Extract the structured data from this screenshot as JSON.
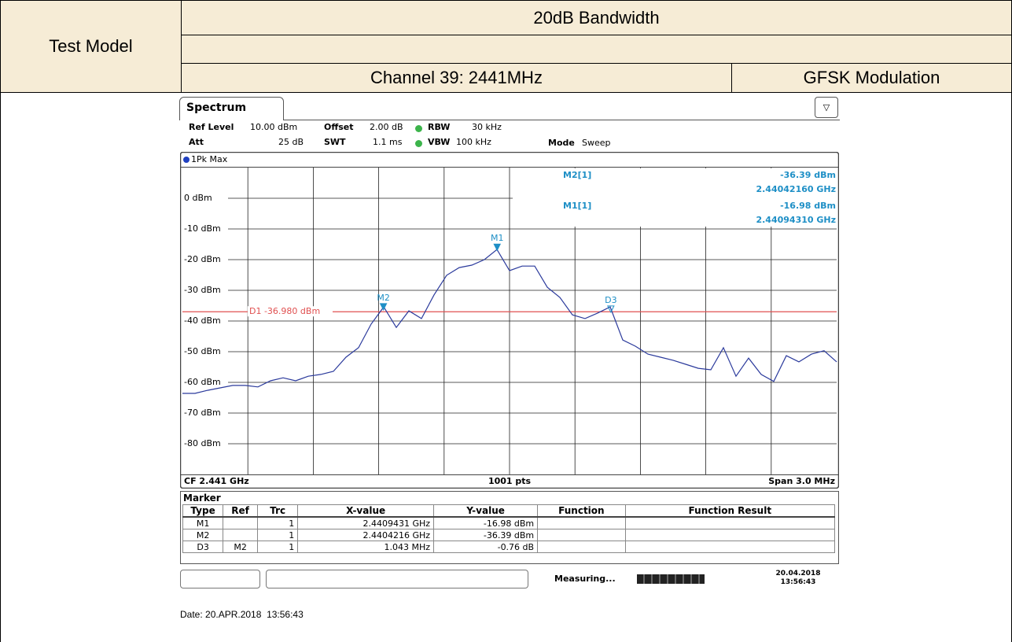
{
  "header": {
    "test_model_label": "Test Model",
    "title": "20dB Bandwidth",
    "channel": "Channel 39: 2441MHz",
    "modulation": "GFSK Modulation"
  },
  "instrument": {
    "tab": "Spectrum",
    "settings": [
      [
        {
          "label": "Ref Level",
          "value": "10.00 dBm"
        },
        {
          "label": "Offset",
          "value": "2.00 dB"
        },
        {
          "label": "RBW",
          "value": "30 kHz"
        }
      ],
      [
        {
          "label": "Att",
          "value": "25 dB"
        },
        {
          "label": "SWT",
          "value": "1.1 ms"
        },
        {
          "label": "VBW",
          "value": "100 kHz"
        },
        {
          "label": "Mode",
          "value": "Sweep"
        }
      ]
    ],
    "trace_label": "1Pk Max",
    "marker_info": [
      {
        "name": "M2[1]",
        "level": "-36.39 dBm",
        "freq": "2.44042160 GHz"
      },
      {
        "name": "M1[1]",
        "level": "-16.98 dBm",
        "freq": "2.44094310 GHz"
      }
    ],
    "footer": {
      "cf": "CF 2.441 GHz",
      "points": "1001 pts",
      "span": "Span 3.0 MHz"
    },
    "marker_table": {
      "title": "Marker",
      "columns": [
        "Type",
        "Ref",
        "Trc",
        "X-value",
        "Y-value",
        "Function",
        "Function Result"
      ],
      "rows": [
        [
          "M1",
          "",
          "1",
          "2.4409431 GHz",
          "-16.98 dBm",
          "",
          ""
        ],
        [
          "M2",
          "",
          "1",
          "2.4404216 GHz",
          "-36.39 dBm",
          "",
          ""
        ],
        [
          "D3",
          "M2",
          "1",
          "1.043 MHz",
          "-0.76 dB",
          "",
          ""
        ]
      ]
    },
    "status": {
      "text": "Measuring...",
      "date": "20.04.2018",
      "time": "13:56:43"
    }
  },
  "chart_data": {
    "type": "line",
    "xlim": [
      2.4395,
      2.4425
    ],
    "ylim": [
      -90,
      10
    ],
    "yticks": [
      {
        "value": 0,
        "label": "0 dBm"
      },
      {
        "value": -10,
        "label": "-10 dBm"
      },
      {
        "value": -20,
        "label": "-20 dBm"
      },
      {
        "value": -30,
        "label": "-30 dBm"
      },
      {
        "value": -40,
        "label": "-40 dBm"
      },
      {
        "value": -50,
        "label": "-50 dBm"
      },
      {
        "value": -60,
        "label": "-60 dBm"
      },
      {
        "value": -70,
        "label": "-70 dBm"
      },
      {
        "value": -80,
        "label": "-80 dBm"
      }
    ],
    "grid": true,
    "series": [
      {
        "color": "#2b3a9c",
        "values": [
          -63.6,
          -63.6,
          -62.6,
          -61.8,
          -61.0,
          -61.0,
          -61.5,
          -59.5,
          -58.5,
          -59.5,
          -58.0,
          -57.4,
          -56.4,
          -51.8,
          -48.7,
          -41.0,
          -35.4,
          -42.1,
          -36.7,
          -39.2,
          -31.5,
          -25.1,
          -22.6,
          -21.8,
          -20.0,
          -16.7,
          -23.6,
          -22.1,
          -22.1,
          -29.0,
          -32.3,
          -38.0,
          -39.2,
          -37.4,
          -35.4,
          -46.2,
          -48.2,
          -50.8,
          -51.8,
          -52.8,
          -54.1,
          -55.4,
          -55.9,
          -48.7,
          -58.0,
          -52.1,
          -57.4,
          -59.7,
          -51.3,
          -53.3,
          -50.8,
          -49.7,
          -53.3
        ]
      }
    ],
    "display_line": {
      "label": "D1 -36.980 dBm",
      "value": -36.98,
      "color": "#e05050"
    },
    "markers": [
      {
        "label": "M1",
        "x": 2.4409431,
        "y": -16.98,
        "color": "#1e8fc6"
      },
      {
        "label": "M2",
        "x": 2.4404216,
        "y": -36.39,
        "color": "#1e8fc6"
      },
      {
        "label": "D3",
        "x": 2.4414646,
        "y": -37.15,
        "color": "#1e8fc6"
      }
    ]
  },
  "date_line": "Date: 20.APR.2018  13:56:43"
}
